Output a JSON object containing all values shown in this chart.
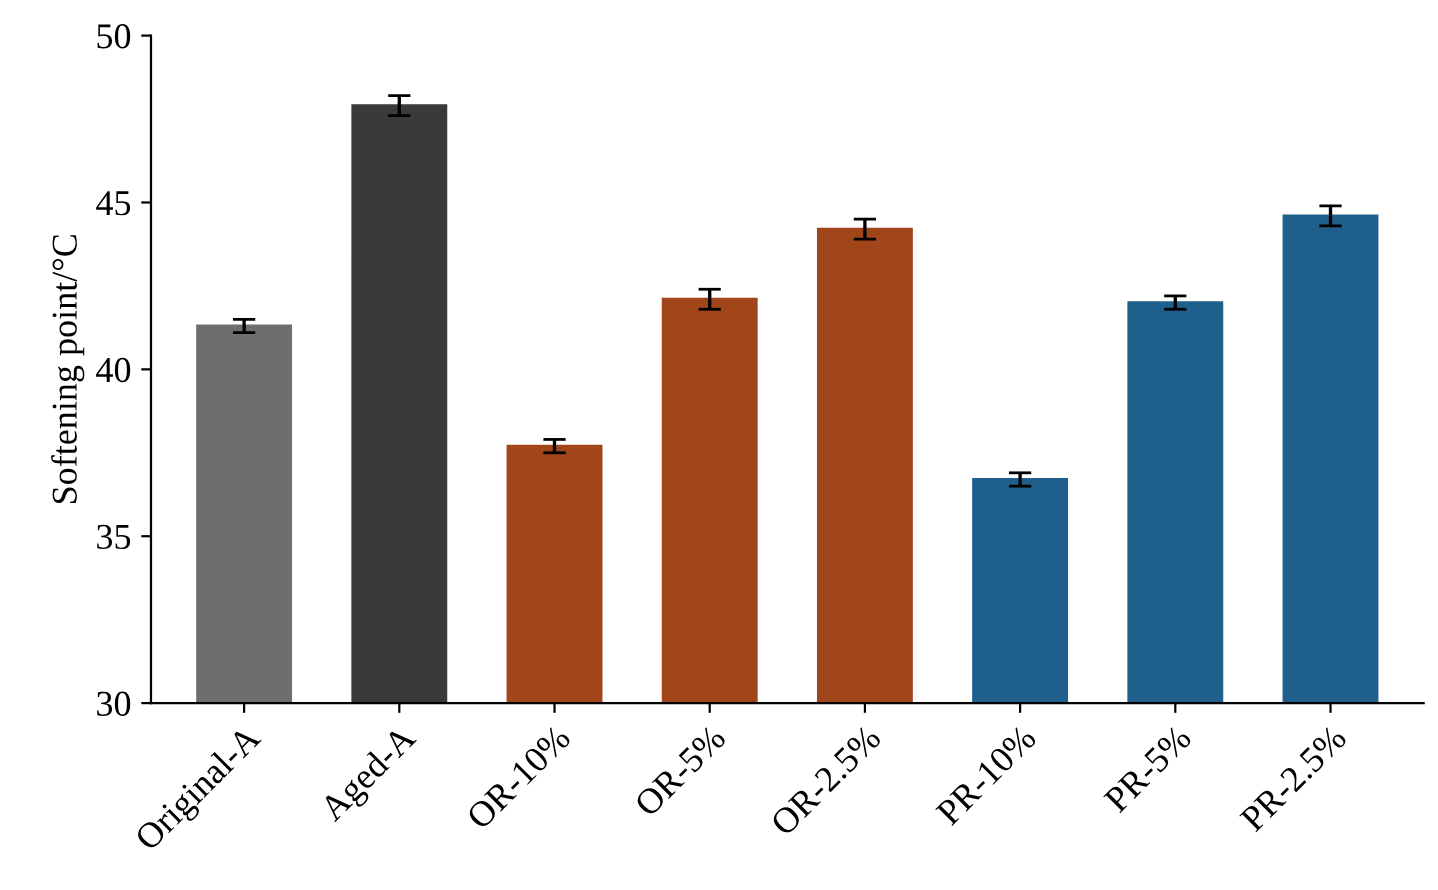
{
  "chart_data": {
    "type": "bar",
    "ylabel": "Softening point/°C",
    "categories": [
      "Original-A",
      "Aged-A",
      "OR-10%",
      "OR-5%",
      "OR-2.5%",
      "PR-10%",
      "PR-5%",
      "PR-2.5%"
    ],
    "values": [
      41.3,
      47.9,
      37.7,
      42.1,
      44.2,
      36.7,
      42.0,
      44.6
    ],
    "errors": [
      0.2,
      0.3,
      0.2,
      0.3,
      0.3,
      0.2,
      0.2,
      0.3
    ],
    "colors": [
      "#6e6e6e",
      "#3a3a3a",
      "#a0461a",
      "#a0461a",
      "#a0461a",
      "#1f5f8b",
      "#1f5f8b",
      "#1f5f8b"
    ],
    "ylim": [
      30,
      50
    ],
    "yticks": [
      30,
      35,
      40,
      45,
      50
    ],
    "grid": false
  }
}
